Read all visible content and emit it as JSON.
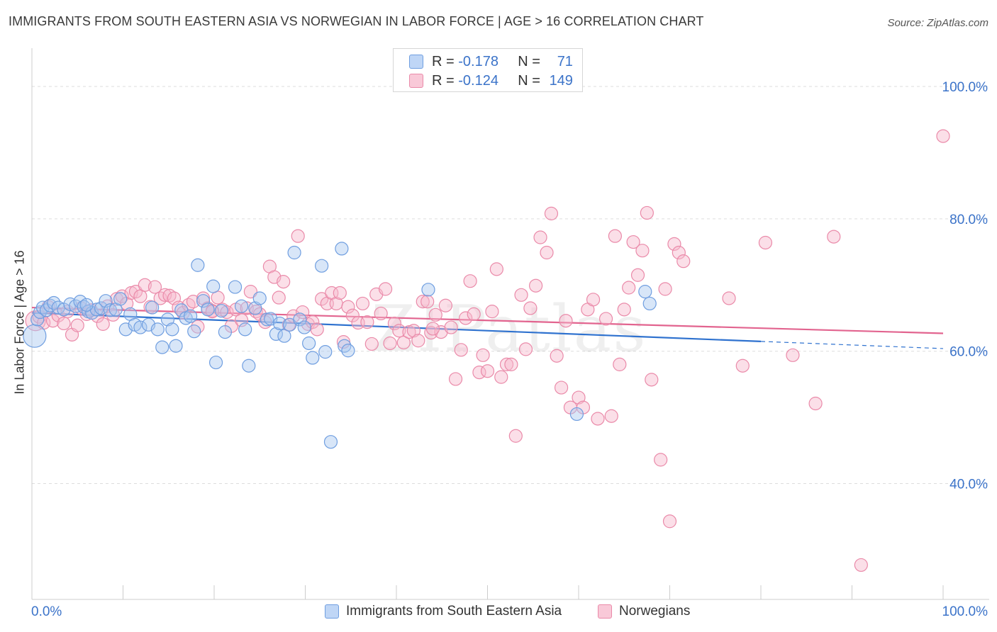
{
  "title": "IMMIGRANTS FROM SOUTH EASTERN ASIA VS NORWEGIAN IN LABOR FORCE | AGE > 16 CORRELATION CHART",
  "source": "Source: ZipAtlas.com",
  "watermark": "ZIPatlas",
  "legend": {
    "blue": {
      "r_label": "R =",
      "r_value": "-0.178",
      "n_label": "N =",
      "n_value": "71"
    },
    "pink": {
      "r_label": "R =",
      "r_value": "-0.124",
      "n_label": "N =",
      "n_value": "149"
    }
  },
  "bottom_legend": {
    "blue": "Immigrants from South Eastern Asia",
    "pink": "Norwegians"
  },
  "chart_data": {
    "type": "scatter",
    "xlabel": "",
    "ylabel": "In Labor Force | Age > 16",
    "x_tick_labels": [
      "0.0%",
      "100.0%"
    ],
    "y_tick_labels": [
      "100.0%",
      "80.0%",
      "60.0%",
      "40.0%"
    ],
    "y_ticks": [
      100,
      80,
      60,
      40
    ],
    "xlim": [
      0,
      100
    ],
    "ylim": [
      22.5,
      104.5
    ],
    "grid": true,
    "legend_position": "top-center",
    "colors": {
      "blue_fill": "#a9c7f0",
      "blue_stroke": "#6f9ee0",
      "blue_line": "#2f72cf",
      "pink_fill": "#f7b8cc",
      "pink_stroke": "#ea8aa9",
      "pink_line": "#e2648f",
      "tick_label": "#3b73c9",
      "grid": "#dddddd"
    },
    "series": [
      {
        "name": "Immigrants from South Eastern Asia",
        "color": "blue",
        "trend": {
          "x_start": 0,
          "y_start": 65.8,
          "x_solid_end": 80,
          "x_end": 100,
          "y_end": 60.4
        },
        "points": [
          [
            0.3,
            62.3,
            16
          ],
          [
            0.6,
            64.8,
            9
          ],
          [
            0.9,
            65.9,
            9
          ],
          [
            1.2,
            66.6,
            9
          ],
          [
            1.6,
            66.2,
            9
          ],
          [
            2.0,
            66.9,
            9
          ],
          [
            2.4,
            67.3,
            9
          ],
          [
            2.9,
            66.6,
            9
          ],
          [
            3.5,
            66.3,
            9
          ],
          [
            4.2,
            67.1,
            9
          ],
          [
            4.8,
            66.8,
            9
          ],
          [
            5.3,
            67.5,
            9
          ],
          [
            5.7,
            66.7,
            9
          ],
          [
            6.2,
            66.0,
            9
          ],
          [
            6.6,
            65.8,
            9
          ],
          [
            7.1,
            66.3,
            9
          ],
          [
            7.6,
            66.5,
            9
          ],
          [
            8.1,
            67.6,
            9
          ],
          [
            8.6,
            66.2,
            9
          ],
          [
            9.2,
            66.3,
            9
          ],
          [
            9.7,
            67.9,
            9
          ],
          [
            10.3,
            63.3,
            9
          ],
          [
            10.8,
            65.6,
            9
          ],
          [
            11.3,
            64.0,
            9
          ],
          [
            11.9,
            63.6,
            9
          ],
          [
            12.8,
            64.0,
            9
          ],
          [
            13.2,
            66.6,
            9
          ],
          [
            13.8,
            63.3,
            9
          ],
          [
            14.3,
            60.6,
            9
          ],
          [
            14.9,
            64.8,
            9
          ],
          [
            15.4,
            63.3,
            9
          ],
          [
            15.8,
            60.8,
            9
          ],
          [
            16.4,
            66.2,
            9
          ],
          [
            16.9,
            65.0,
            9
          ],
          [
            17.4,
            65.3,
            9
          ],
          [
            17.8,
            63.0,
            9
          ],
          [
            18.2,
            73.0,
            9
          ],
          [
            18.8,
            67.6,
            9
          ],
          [
            19.3,
            66.3,
            9
          ],
          [
            19.9,
            69.8,
            9
          ],
          [
            20.2,
            58.3,
            9
          ],
          [
            20.8,
            66.1,
            9
          ],
          [
            21.2,
            62.9,
            9
          ],
          [
            22.3,
            69.7,
            9
          ],
          [
            23.0,
            66.8,
            9
          ],
          [
            23.4,
            63.3,
            9
          ],
          [
            23.8,
            57.8,
            9
          ],
          [
            24.5,
            66.5,
            9
          ],
          [
            25.0,
            68.0,
            9
          ],
          [
            25.8,
            64.8,
            9
          ],
          [
            26.2,
            64.9,
            9
          ],
          [
            26.8,
            62.6,
            9
          ],
          [
            27.2,
            64.2,
            9
          ],
          [
            27.7,
            62.3,
            9
          ],
          [
            28.3,
            64.0,
            9
          ],
          [
            28.8,
            74.9,
            9
          ],
          [
            29.4,
            64.8,
            9
          ],
          [
            29.9,
            63.6,
            9
          ],
          [
            30.4,
            61.2,
            9
          ],
          [
            30.8,
            59.0,
            9
          ],
          [
            31.8,
            72.9,
            9
          ],
          [
            32.2,
            59.9,
            9
          ],
          [
            32.8,
            46.3,
            9
          ],
          [
            34.0,
            75.5,
            9
          ],
          [
            34.3,
            60.8,
            9
          ],
          [
            34.7,
            60.1,
            9
          ],
          [
            43.5,
            69.3,
            9
          ],
          [
            59.8,
            50.5,
            9
          ],
          [
            67.3,
            69.0,
            9
          ],
          [
            67.8,
            67.2,
            9
          ],
          [
            6.0,
            67.0,
            9
          ]
        ]
      },
      {
        "name": "Norwegians",
        "color": "pink",
        "trend": {
          "x_start": 0,
          "y_start": 66.6,
          "x_end": 100,
          "y_end": 62.7
        },
        "points": [
          [
            0.4,
            64.6,
            14
          ],
          [
            0.8,
            65.2,
            9
          ],
          [
            1.3,
            64.3,
            9
          ],
          [
            1.8,
            66.7,
            9
          ],
          [
            2.3,
            64.6,
            9
          ],
          [
            2.9,
            65.4,
            9
          ],
          [
            3.5,
            64.2,
            9
          ],
          [
            3.9,
            66.0,
            9
          ],
          [
            4.4,
            62.5,
            9
          ],
          [
            5.0,
            63.9,
            9
          ],
          [
            5.4,
            66.5,
            9
          ],
          [
            6.0,
            65.6,
            9
          ],
          [
            6.5,
            66.2,
            9
          ],
          [
            7.2,
            65.3,
            9
          ],
          [
            7.8,
            64.1,
            9
          ],
          [
            8.3,
            66.8,
            9
          ],
          [
            8.9,
            65.5,
            9
          ],
          [
            9.3,
            67.9,
            9
          ],
          [
            9.9,
            68.3,
            9
          ],
          [
            10.4,
            67.2,
            9
          ],
          [
            10.9,
            68.8,
            9
          ],
          [
            11.4,
            69.0,
            9
          ],
          [
            11.9,
            68.3,
            9
          ],
          [
            12.4,
            70.0,
            9
          ],
          [
            13.0,
            66.7,
            9
          ],
          [
            13.5,
            69.7,
            9
          ],
          [
            14.1,
            68.0,
            9
          ],
          [
            14.6,
            68.5,
            9
          ],
          [
            15.1,
            68.4,
            9
          ],
          [
            15.6,
            68.0,
            9
          ],
          [
            16.1,
            66.6,
            9
          ],
          [
            16.6,
            65.8,
            9
          ],
          [
            17.2,
            67.0,
            9
          ],
          [
            17.7,
            67.5,
            9
          ],
          [
            18.2,
            63.7,
            9
          ],
          [
            18.8,
            68.0,
            9
          ],
          [
            19.3,
            66.5,
            9
          ],
          [
            19.8,
            66.1,
            9
          ],
          [
            20.4,
            68.1,
            9
          ],
          [
            20.9,
            66.3,
            9
          ],
          [
            21.4,
            65.9,
            9
          ],
          [
            21.9,
            63.8,
            9
          ],
          [
            22.4,
            66.3,
            9
          ],
          [
            23.0,
            64.7,
            9
          ],
          [
            23.6,
            66.5,
            9
          ],
          [
            24.0,
            69.0,
            9
          ],
          [
            24.6,
            66.0,
            9
          ],
          [
            25.0,
            65.6,
            9
          ],
          [
            25.6,
            64.4,
            9
          ],
          [
            26.1,
            72.8,
            9
          ],
          [
            26.6,
            71.2,
            9
          ],
          [
            27.1,
            68.1,
            9
          ],
          [
            27.6,
            70.5,
            9
          ],
          [
            28.2,
            64.0,
            9
          ],
          [
            28.7,
            65.3,
            9
          ],
          [
            29.2,
            77.4,
            9
          ],
          [
            29.7,
            65.9,
            9
          ],
          [
            30.3,
            64.1,
            9
          ],
          [
            30.8,
            64.4,
            9
          ],
          [
            31.3,
            63.3,
            9
          ],
          [
            31.8,
            67.9,
            9
          ],
          [
            32.4,
            67.2,
            9
          ],
          [
            32.9,
            68.8,
            9
          ],
          [
            33.4,
            67.2,
            9
          ],
          [
            33.8,
            68.8,
            9
          ],
          [
            34.2,
            61.4,
            9
          ],
          [
            34.7,
            66.7,
            9
          ],
          [
            35.2,
            65.4,
            9
          ],
          [
            35.8,
            64.3,
            9
          ],
          [
            36.3,
            67.2,
            9
          ],
          [
            36.8,
            64.4,
            9
          ],
          [
            37.3,
            61.1,
            9
          ],
          [
            37.8,
            68.6,
            9
          ],
          [
            38.3,
            65.7,
            9
          ],
          [
            38.8,
            69.4,
            9
          ],
          [
            39.3,
            61.2,
            9
          ],
          [
            39.8,
            64.2,
            9
          ],
          [
            40.3,
            63.1,
            9
          ],
          [
            40.8,
            61.3,
            9
          ],
          [
            41.4,
            62.9,
            9
          ],
          [
            41.9,
            63.1,
            9
          ],
          [
            42.4,
            61.6,
            9
          ],
          [
            42.9,
            67.5,
            9
          ],
          [
            43.4,
            67.5,
            9
          ],
          [
            43.8,
            62.8,
            9
          ],
          [
            44.3,
            65.5,
            9
          ],
          [
            44.9,
            62.9,
            9
          ],
          [
            45.4,
            66.9,
            9
          ],
          [
            46.0,
            63.6,
            9
          ],
          [
            46.5,
            55.8,
            9
          ],
          [
            47.1,
            60.2,
            9
          ],
          [
            47.6,
            65.0,
            9
          ],
          [
            48.1,
            70.6,
            9
          ],
          [
            48.5,
            65.6,
            9
          ],
          [
            49.1,
            56.8,
            9
          ],
          [
            49.5,
            59.4,
            9
          ],
          [
            50.0,
            57.0,
            9
          ],
          [
            50.5,
            66.0,
            9
          ],
          [
            51.0,
            72.4,
            9
          ],
          [
            51.5,
            56.1,
            9
          ],
          [
            52.1,
            58.0,
            9
          ],
          [
            52.6,
            58.0,
            9
          ],
          [
            53.1,
            47.2,
            9
          ],
          [
            53.7,
            68.5,
            9
          ],
          [
            54.2,
            60.3,
            9
          ],
          [
            54.7,
            66.5,
            9
          ],
          [
            55.3,
            69.9,
            9
          ],
          [
            55.8,
            77.2,
            9
          ],
          [
            56.5,
            74.9,
            9
          ],
          [
            57.0,
            80.8,
            9
          ],
          [
            57.6,
            59.3,
            9
          ],
          [
            58.1,
            54.5,
            9
          ],
          [
            58.6,
            64.6,
            9
          ],
          [
            59.1,
            51.5,
            9
          ],
          [
            60.0,
            53.0,
            9
          ],
          [
            60.5,
            51.5,
            9
          ],
          [
            61.0,
            66.3,
            9
          ],
          [
            61.6,
            67.8,
            9
          ],
          [
            62.1,
            49.8,
            9
          ],
          [
            63.0,
            64.9,
            9
          ],
          [
            63.6,
            50.2,
            9
          ],
          [
            64.0,
            77.4,
            9
          ],
          [
            64.5,
            58.0,
            9
          ],
          [
            65.0,
            66.3,
            9
          ],
          [
            65.5,
            69.6,
            9
          ],
          [
            66.0,
            76.5,
            9
          ],
          [
            66.5,
            71.5,
            9
          ],
          [
            67.0,
            75.2,
            9
          ],
          [
            67.5,
            80.9,
            9
          ],
          [
            68.0,
            55.7,
            9
          ],
          [
            69.0,
            43.6,
            9
          ],
          [
            69.5,
            69.4,
            9
          ],
          [
            70.0,
            34.3,
            9
          ],
          [
            70.5,
            76.2,
            9
          ],
          [
            71.0,
            74.9,
            9
          ],
          [
            71.5,
            73.6,
            9
          ],
          [
            76.5,
            68.0,
            9
          ],
          [
            78.0,
            57.8,
            9
          ],
          [
            80.5,
            76.4,
            9
          ],
          [
            83.5,
            59.4,
            9
          ],
          [
            86.0,
            52.1,
            9
          ],
          [
            88.0,
            77.3,
            9
          ],
          [
            91.0,
            27.7,
            9
          ],
          [
            100.0,
            92.5,
            9
          ],
          [
            19.8,
            66.0,
            9
          ],
          [
            44.0,
            63.4,
            9
          ]
        ]
      }
    ]
  }
}
